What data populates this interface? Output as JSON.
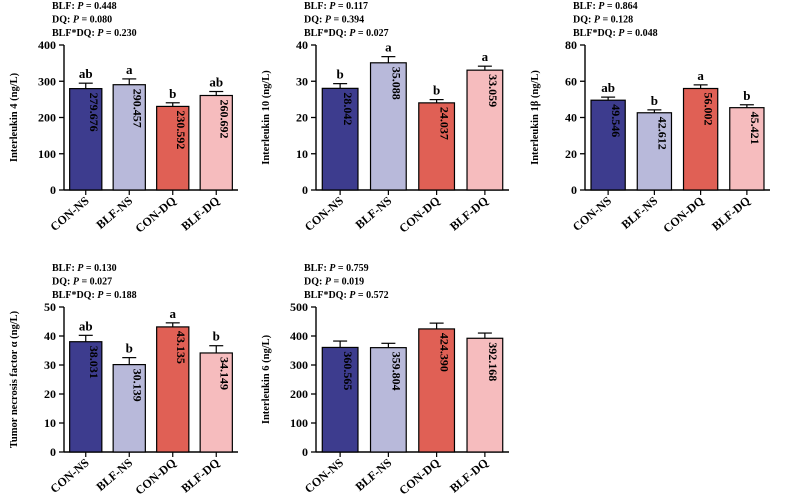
{
  "figure": {
    "colors": {
      "axis": "#000000",
      "bar_stroke": "#000000",
      "error_bar": "#000000"
    },
    "tick_labels": [
      "CON-NS",
      "BLF-NS",
      "CON-DQ",
      "BLF-DQ"
    ],
    "bar_colors": [
      "#3d3c8e",
      "#b8b9da",
      "#e06055",
      "#f6bcbe"
    ]
  },
  "chart_data": [
    {
      "id": "il4",
      "type": "bar",
      "ylabel": "Interleukin 4 (ng/L)",
      "categories": [
        "CON-NS",
        "BLF-NS",
        "CON-DQ",
        "BLF-DQ"
      ],
      "values": [
        279.676,
        290.457,
        230.592,
        260.692
      ],
      "value_labels": [
        "279.676",
        "290.457",
        "230.592",
        "260.692"
      ],
      "errors": [
        15,
        16,
        10,
        11
      ],
      "letters": [
        "ab",
        "a",
        "b",
        "ab"
      ],
      "ylim": [
        0,
        400
      ],
      "yticks": [
        0,
        100,
        200,
        300,
        400
      ],
      "stats": [
        {
          "label": "BLF: ",
          "p": "0.448"
        },
        {
          "label": "DQ: ",
          "p": "0.080"
        },
        {
          "label": "BLF*DQ: ",
          "p": "0.230"
        }
      ]
    },
    {
      "id": "il10",
      "type": "bar",
      "ylabel": "Interleukin 10 (ng/L)",
      "categories": [
        "CON-NS",
        "BLF-NS",
        "CON-DQ",
        "BLF-DQ"
      ],
      "values": [
        28.042,
        35.088,
        24.037,
        33.059
      ],
      "value_labels": [
        "28.042",
        "35.088",
        "24.037",
        "33.059"
      ],
      "errors": [
        1.3,
        1.7,
        0.9,
        1.1
      ],
      "letters": [
        "b",
        "a",
        "b",
        "a"
      ],
      "ylim": [
        0,
        40
      ],
      "yticks": [
        0,
        10,
        20,
        30,
        40
      ],
      "stats": [
        {
          "label": "BLF: ",
          "p": "0.117"
        },
        {
          "label": "DQ: ",
          "p": "0.394"
        },
        {
          "label": "BLF*DQ: ",
          "p": "0.027"
        }
      ]
    },
    {
      "id": "il1b",
      "type": "bar",
      "ylabel": "Interleukin 1β (ng/L)",
      "categories": [
        "CON-NS",
        "BLF-NS",
        "CON-DQ",
        "BLF-DQ"
      ],
      "values": [
        49.546,
        42.612,
        56.002,
        45.421
      ],
      "value_labels": [
        "49.546",
        "42.612",
        "56.002",
        "45.421"
      ],
      "errors": [
        1.7,
        1.6,
        2.0,
        1.6
      ],
      "letters": [
        "ab",
        "b",
        "a",
        "b"
      ],
      "ylim": [
        0,
        80
      ],
      "yticks": [
        0,
        20,
        40,
        60,
        80
      ],
      "stats": [
        {
          "label": "BLF: ",
          "p": "0.864"
        },
        {
          "label": "DQ: ",
          "p": "0.128"
        },
        {
          "label": "BLF*DQ: ",
          "p": "0.048"
        }
      ]
    },
    {
      "id": "tnfa",
      "type": "bar",
      "ylabel": "Tumor necrosis factor α (ng/L)",
      "categories": [
        "CON-NS",
        "BLF-NS",
        "CON-DQ",
        "BLF-DQ"
      ],
      "values": [
        38.031,
        30.139,
        43.135,
        34.149
      ],
      "value_labels": [
        "38.031",
        "30.139",
        "43.135",
        "34.149"
      ],
      "errors": [
        2.2,
        2.4,
        1.4,
        2.5
      ],
      "letters": [
        "ab",
        "b",
        "a",
        "b"
      ],
      "ylim": [
        0,
        50
      ],
      "yticks": [
        0,
        10,
        20,
        30,
        40,
        50
      ],
      "stats": [
        {
          "label": "BLF: ",
          "p": "0.130"
        },
        {
          "label": "DQ: ",
          "p": "0.027"
        },
        {
          "label": "BLF*DQ: ",
          "p": "0.188"
        }
      ]
    },
    {
      "id": "il6",
      "type": "bar",
      "ylabel": "Interleukin 6 (ng/L)",
      "categories": [
        "CON-NS",
        "BLF-NS",
        "CON-DQ",
        "BLF-DQ"
      ],
      "values": [
        360.565,
        359.804,
        424.39,
        392.168
      ],
      "value_labels": [
        "360.565",
        "359.804",
        "424.390",
        "392.168"
      ],
      "errors": [
        22,
        15,
        20,
        18
      ],
      "letters": [
        "",
        "",
        "",
        ""
      ],
      "ylim": [
        0,
        500
      ],
      "yticks": [
        0,
        100,
        200,
        300,
        400,
        500
      ],
      "stats": [
        {
          "label": "BLF: ",
          "p": "0.759"
        },
        {
          "label": "DQ: ",
          "p": "0.019"
        },
        {
          "label": "BLF*DQ: ",
          "p": "0.572"
        }
      ]
    }
  ]
}
